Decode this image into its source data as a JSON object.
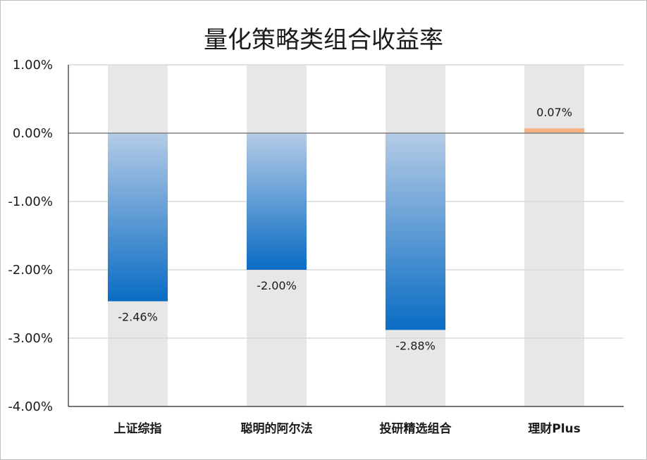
{
  "chart_data": {
    "type": "bar",
    "title": "量化策略类组合收益率",
    "xlabel": "",
    "ylabel": "",
    "categories": [
      "上证综指",
      "聪明的阿尔法",
      "投研精选组合",
      "理财Plus"
    ],
    "values": [
      -2.46,
      -2.0,
      -2.88,
      0.07
    ],
    "value_labels": [
      "-2.46%",
      "-2.00%",
      "-2.88%",
      "0.07%"
    ],
    "ylim": [
      -4.0,
      1.0
    ],
    "yticks": [
      1.0,
      0.0,
      -1.0,
      -2.0,
      -3.0,
      -4.0
    ],
    "ytick_labels": [
      "1.00%",
      "0.00%",
      "-1.00%",
      "-2.00%",
      "-3.00%",
      "-4.00%"
    ],
    "grid": true,
    "legend": "none"
  },
  "colors": {
    "negative_bar_top": "#b4cbe6",
    "negative_bar_bottom": "#0a6cc4",
    "positive_bar": "#f4b183",
    "background_column": "#e7e7e7",
    "gridline": "#d9d9d9",
    "zero_line": "#7f7f7f"
  }
}
